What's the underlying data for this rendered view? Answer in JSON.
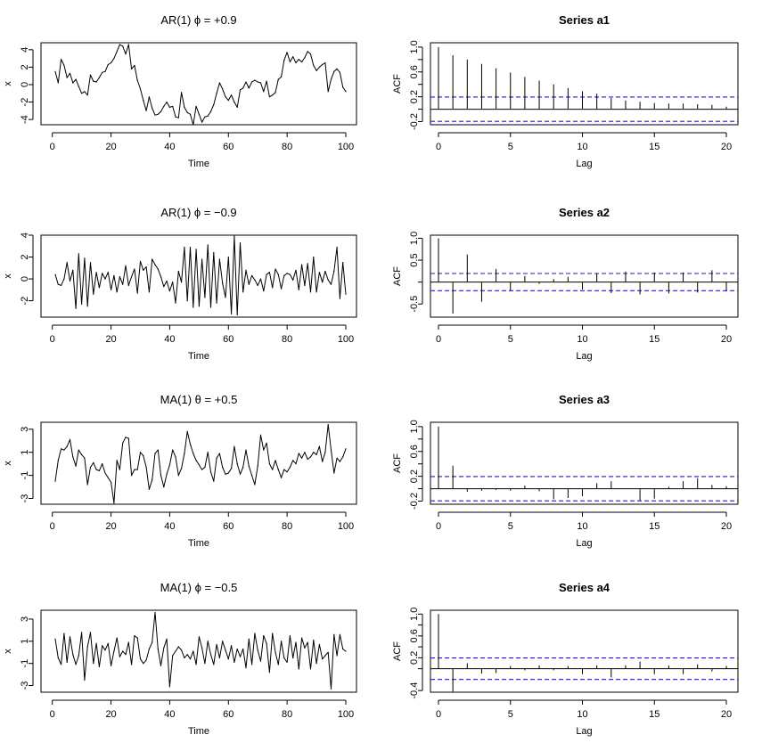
{
  "chart_data": [
    {
      "type": "line",
      "title": "AR(1)  ϕ = +0.9",
      "xlabel": "Time",
      "ylabel": "x",
      "xlim": [
        1,
        100
      ],
      "ylim": [
        -4.6,
        4.8
      ],
      "xticks": [
        0,
        20,
        40,
        60,
        80,
        100
      ],
      "yticks": [
        -4,
        -2,
        0,
        2,
        4
      ],
      "x": [
        1,
        2,
        3,
        4,
        5,
        6,
        7,
        8,
        9,
        10,
        11,
        12,
        13,
        14,
        15,
        16,
        17,
        18,
        19,
        20,
        21,
        22,
        23,
        24,
        25,
        26,
        27,
        28,
        29,
        30,
        31,
        32,
        33,
        34,
        35,
        36,
        37,
        38,
        39,
        40,
        41,
        42,
        43,
        44,
        45,
        46,
        47,
        48,
        49,
        50,
        51,
        52,
        53,
        54,
        55,
        56,
        57,
        58,
        59,
        60,
        61,
        62,
        63,
        64,
        65,
        66,
        67,
        68,
        69,
        70,
        71,
        72,
        73,
        74,
        75,
        76,
        77,
        78,
        79,
        80,
        81,
        82,
        83,
        84,
        85,
        86,
        87,
        88,
        89,
        90,
        91,
        92,
        93,
        94,
        95,
        96,
        97,
        98,
        99,
        100
      ],
      "values": [
        1.5,
        0.2,
        2.9,
        2.2,
        0.8,
        1.3,
        0.2,
        0.6,
        -0.2,
        -1.0,
        -0.8,
        -1.2,
        1.1,
        0.4,
        0.3,
        0.8,
        1.4,
        1.5,
        2.3,
        2.5,
        3.0,
        3.8,
        4.6,
        4.4,
        3.5,
        4.6,
        1.8,
        2.2,
        0.5,
        -0.5,
        -1.8,
        -3.0,
        -1.4,
        -2.7,
        -3.5,
        -3.4,
        -3.1,
        -2.5,
        -2.0,
        -2.6,
        -2.5,
        -3.7,
        -3.8,
        -0.9,
        -2.6,
        -3.2,
        -3.4,
        -4.6,
        -2.5,
        -3.4,
        -4.3,
        -3.7,
        -3.6,
        -3.1,
        -2.3,
        -1.0,
        0.2,
        -0.5,
        -1.4,
        -1.8,
        -1.2,
        -2.0,
        -2.6,
        -0.6,
        -0.4,
        0.3,
        -0.4,
        0.3,
        0.5,
        0.3,
        0.2,
        -0.8,
        0.4,
        -1.4,
        -1.2,
        -0.9,
        0.6,
        0.9,
        2.8,
        3.7,
        2.6,
        3.2,
        2.5,
        2.9,
        2.6,
        3.1,
        3.8,
        3.5,
        2.2,
        1.6,
        2.0,
        2.3,
        2.5,
        -0.8,
        0.6,
        1.5,
        1.8,
        1.4,
        -0.3,
        -0.8
      ]
    },
    {
      "type": "bar",
      "title": "Series  a1",
      "xlabel": "Lag",
      "ylabel": "ACF",
      "xlim": [
        -0.8,
        20.8
      ],
      "ylim": [
        -0.25,
        1.07
      ],
      "xticks": [
        0,
        5,
        10,
        15,
        20
      ],
      "yticks": [
        -0.2,
        0.2,
        0.6,
        1.0
      ],
      "ytick_labels": [
        "-0.2",
        "0.2",
        "0.6",
        "1.0"
      ],
      "extra_yticks": [
        0.0,
        0.4,
        0.8
      ],
      "confidence_bounds": [
        0.196,
        -0.196
      ],
      "x": [
        0,
        1,
        2,
        3,
        4,
        5,
        6,
        7,
        8,
        9,
        10,
        11,
        12,
        13,
        14,
        15,
        16,
        17,
        18,
        19,
        20
      ],
      "values": [
        1.0,
        0.87,
        0.8,
        0.73,
        0.66,
        0.59,
        0.52,
        0.46,
        0.4,
        0.34,
        0.29,
        0.25,
        0.18,
        0.14,
        0.12,
        0.1,
        0.09,
        0.09,
        0.08,
        0.07,
        0.04
      ]
    },
    {
      "type": "line",
      "title": "AR(1)  ϕ = −0.9",
      "xlabel": "Time",
      "ylabel": "x",
      "xlim": [
        1,
        100
      ],
      "ylim": [
        -3.5,
        4.0
      ],
      "xticks": [
        0,
        20,
        40,
        60,
        80,
        100
      ],
      "yticks": [
        -2,
        0,
        2,
        4
      ],
      "x": [
        1,
        2,
        3,
        4,
        5,
        6,
        7,
        8,
        9,
        10,
        11,
        12,
        13,
        14,
        15,
        16,
        17,
        18,
        19,
        20,
        21,
        22,
        23,
        24,
        25,
        26,
        27,
        28,
        29,
        30,
        31,
        32,
        33,
        34,
        35,
        36,
        37,
        38,
        39,
        40,
        41,
        42,
        43,
        44,
        45,
        46,
        47,
        48,
        49,
        50,
        51,
        52,
        53,
        54,
        55,
        56,
        57,
        58,
        59,
        60,
        61,
        62,
        63,
        64,
        65,
        66,
        67,
        68,
        69,
        70,
        71,
        72,
        73,
        74,
        75,
        76,
        77,
        78,
        79,
        80,
        81,
        82,
        83,
        84,
        85,
        86,
        87,
        88,
        89,
        90,
        91,
        92,
        93,
        94,
        95,
        96,
        97,
        98,
        99,
        100
      ],
      "values": [
        0.4,
        -0.5,
        -0.6,
        0.0,
        1.5,
        -0.2,
        0.8,
        -2.7,
        2.3,
        -2.3,
        1.9,
        -2.5,
        1.5,
        -1.4,
        0.6,
        -0.8,
        0.5,
        0.0,
        0.6,
        -1.0,
        0.3,
        -1.2,
        0.2,
        -0.5,
        1.2,
        -0.6,
        0.2,
        0.9,
        -1.3,
        1.6,
        0.8,
        1.1,
        -1.2,
        1.8,
        1.3,
        0.9,
        0.2,
        -0.7,
        -0.2,
        -1.1,
        -0.3,
        -2.2,
        0.7,
        -0.3,
        2.9,
        -2.0,
        2.9,
        -2.6,
        2.7,
        -2.5,
        1.8,
        -1.7,
        3.1,
        -2.6,
        2.4,
        -2.2,
        1.8,
        -0.4,
        -1.7,
        2.0,
        -3.2,
        3.9,
        -3.3,
        3.3,
        -1.2,
        0.8,
        -0.5,
        0.3,
        -0.1,
        -0.6,
        0.0,
        -1.1,
        0.4,
        0.6,
        -0.8,
        0.9,
        0.4,
        -0.9,
        0.3,
        0.5,
        0.4,
        -0.1,
        0.8,
        -1.0,
        1.3,
        -0.6,
        1.4,
        -1.2,
        2.0,
        -1.2,
        0.6,
        -0.3,
        0.7,
        -0.1,
        -0.5,
        0.7,
        2.9,
        -1.8,
        1.5,
        -1.4
      ]
    },
    {
      "type": "bar",
      "title": "Series  a2",
      "xlabel": "Lag",
      "ylabel": "ACF",
      "xlim": [
        -0.8,
        20.8
      ],
      "ylim": [
        -0.8,
        1.07
      ],
      "xticks": [
        0,
        5,
        10,
        15,
        20
      ],
      "yticks": [
        -0.5,
        0.5,
        1.0
      ],
      "ytick_labels": [
        "-0.5",
        "0.5",
        "1.0"
      ],
      "extra_yticks": [
        0.0
      ],
      "confidence_bounds": [
        0.196,
        -0.196
      ],
      "x": [
        0,
        1,
        2,
        3,
        4,
        5,
        6,
        7,
        8,
        9,
        10,
        11,
        12,
        13,
        14,
        15,
        16,
        17,
        18,
        19,
        20
      ],
      "values": [
        1.0,
        -0.72,
        0.63,
        -0.45,
        0.3,
        -0.2,
        0.14,
        -0.04,
        0.07,
        0.12,
        -0.17,
        0.2,
        -0.25,
        0.24,
        -0.28,
        0.22,
        -0.26,
        0.22,
        -0.24,
        0.27,
        -0.2
      ]
    },
    {
      "type": "line",
      "title": "MA(1)  θ = +0.5",
      "xlabel": "Time",
      "ylabel": "x",
      "xlim": [
        1,
        100
      ],
      "ylim": [
        -3.5,
        3.6
      ],
      "xticks": [
        0,
        20,
        40,
        60,
        80,
        100
      ],
      "yticks": [
        -3,
        -1,
        1,
        3
      ],
      "x": [
        1,
        2,
        3,
        4,
        5,
        6,
        7,
        8,
        9,
        10,
        11,
        12,
        13,
        14,
        15,
        16,
        17,
        18,
        19,
        20,
        21,
        22,
        23,
        24,
        25,
        26,
        27,
        28,
        29,
        30,
        31,
        32,
        33,
        34,
        35,
        36,
        37,
        38,
        39,
        40,
        41,
        42,
        43,
        44,
        45,
        46,
        47,
        48,
        49,
        50,
        51,
        52,
        53,
        54,
        55,
        56,
        57,
        58,
        59,
        60,
        61,
        62,
        63,
        64,
        65,
        66,
        67,
        68,
        69,
        70,
        71,
        72,
        73,
        74,
        75,
        76,
        77,
        78,
        79,
        80,
        81,
        82,
        83,
        84,
        85,
        86,
        87,
        88,
        89,
        90,
        91,
        92,
        93,
        94,
        95,
        96,
        97,
        98,
        99,
        100
      ],
      "values": [
        -1.5,
        0.3,
        1.3,
        1.2,
        1.5,
        2.1,
        0.6,
        -0.2,
        1.2,
        0.8,
        0.5,
        -1.8,
        -0.3,
        0.1,
        -0.5,
        -0.6,
        0.0,
        -0.8,
        -1.2,
        -1.6,
        -3.4,
        0.3,
        -0.5,
        1.8,
        2.3,
        2.2,
        -1.0,
        -0.5,
        -0.5,
        1.0,
        0.7,
        -0.3,
        -2.2,
        -1.4,
        0.9,
        1.2,
        -1.0,
        -2.0,
        -0.9,
        -0.1,
        1.2,
        0.6,
        -1.0,
        -0.4,
        0.9,
        2.8,
        1.7,
        0.9,
        0.3,
        -0.1,
        -0.5,
        -0.3,
        1.0,
        -0.7,
        -1.5,
        0.5,
        0.9,
        -0.3,
        -0.9,
        -0.8,
        -0.4,
        1.5,
        0.0,
        -0.9,
        -0.3,
        1.2,
        -0.2,
        -1.0,
        -1.8,
        -0.2,
        2.5,
        1.2,
        1.8,
        0.0,
        -0.5,
        0.3,
        -0.5,
        -1.2,
        -0.5,
        -0.7,
        -0.3,
        0.3,
        0.0,
        0.9,
        0.5,
        1.0,
        0.4,
        0.6,
        1.0,
        0.8,
        1.5,
        0.2,
        1.0,
        3.4,
        1.2,
        -0.8,
        0.5,
        0.2,
        0.6,
        1.3
      ]
    },
    {
      "type": "bar",
      "title": "Series  a3",
      "xlabel": "Lag",
      "ylabel": "ACF",
      "xlim": [
        -0.8,
        20.8
      ],
      "ylim": [
        -0.25,
        1.07
      ],
      "xticks": [
        0,
        5,
        10,
        15,
        20
      ],
      "yticks": [
        -0.2,
        0.2,
        0.6,
        1.0
      ],
      "ytick_labels": [
        "-0.2",
        "0.2",
        "0.6",
        "1.0"
      ],
      "extra_yticks": [
        0.0,
        0.4,
        0.8
      ],
      "confidence_bounds": [
        0.196,
        -0.196
      ],
      "x": [
        0,
        1,
        2,
        3,
        4,
        5,
        6,
        7,
        8,
        9,
        10,
        11,
        12,
        13,
        14,
        15,
        16,
        17,
        18,
        19,
        20
      ],
      "values": [
        1.0,
        0.37,
        -0.05,
        -0.03,
        -0.02,
        -0.03,
        0.05,
        -0.04,
        -0.17,
        -0.15,
        -0.12,
        0.09,
        0.12,
        0.0,
        -0.19,
        -0.16,
        0.03,
        0.12,
        0.17,
        0.06,
        0.04
      ]
    },
    {
      "type": "line",
      "title": "MA(1)  ϕ = −0.5",
      "xlabel": "Time",
      "ylabel": "x",
      "xlim": [
        1,
        100
      ],
      "ylim": [
        -3.6,
        3.8
      ],
      "xticks": [
        0,
        20,
        40,
        60,
        80,
        100
      ],
      "yticks": [
        -3,
        -1,
        1,
        3
      ],
      "x": [
        1,
        2,
        3,
        4,
        5,
        6,
        7,
        8,
        9,
        10,
        11,
        12,
        13,
        14,
        15,
        16,
        17,
        18,
        19,
        20,
        21,
        22,
        23,
        24,
        25,
        26,
        27,
        28,
        29,
        30,
        31,
        32,
        33,
        34,
        35,
        36,
        37,
        38,
        39,
        40,
        41,
        42,
        43,
        44,
        45,
        46,
        47,
        48,
        49,
        50,
        51,
        52,
        53,
        54,
        55,
        56,
        57,
        58,
        59,
        60,
        61,
        62,
        63,
        64,
        65,
        66,
        67,
        68,
        69,
        70,
        71,
        72,
        73,
        74,
        75,
        76,
        77,
        78,
        79,
        80,
        81,
        82,
        83,
        84,
        85,
        86,
        87,
        88,
        89,
        90,
        91,
        92,
        93,
        94,
        95,
        96,
        97,
        98,
        99,
        100
      ],
      "values": [
        1.2,
        -0.5,
        -1.1,
        1.7,
        -0.9,
        1.4,
        -0.2,
        -1.1,
        -0.3,
        1.8,
        -2.5,
        0.5,
        1.8,
        -1.0,
        0.8,
        -1.3,
        0.6,
        0.2,
        0.8,
        -1.2,
        0.1,
        1.3,
        -0.4,
        0.1,
        -0.2,
        0.9,
        -1.1,
        1.5,
        1.3,
        -0.6,
        -1.0,
        -0.7,
        0.3,
        0.9,
        3.6,
        0.3,
        -1.2,
        0.4,
        1.2,
        -3.1,
        -0.3,
        0.1,
        0.5,
        0.2,
        -0.5,
        -0.2,
        -0.6,
        0.1,
        -1.1,
        1.4,
        0.4,
        -1.0,
        1.0,
        -0.2,
        -1.1,
        0.7,
        -0.5,
        1.0,
        0.2,
        -0.6,
        0.6,
        -0.9,
        0.3,
        -0.4,
        0.3,
        -1.4,
        1.2,
        -1.1,
        1.7,
        0.2,
        -0.8,
        1.5,
        0.8,
        -1.8,
        1.7,
        0.0,
        -1.1,
        1.0,
        -0.5,
        -0.9,
        1.5,
        -0.5,
        0.9,
        -1.5,
        1.3,
        0.4,
        0.9,
        -1.5,
        1.1,
        -1.0,
        0.7,
        -0.6,
        -0.3,
        0.0,
        -3.3,
        1.6,
        -0.3,
        1.6,
        0.3,
        0.1
      ]
    },
    {
      "type": "bar",
      "title": "Series  a4",
      "xlabel": "Lag",
      "ylabel": "ACF",
      "xlim": [
        -0.8,
        20.8
      ],
      "ylim": [
        -0.43,
        1.07
      ],
      "xticks": [
        0,
        5,
        10,
        15,
        20
      ],
      "yticks": [
        -0.4,
        0.2,
        0.6,
        1.0
      ],
      "ytick_labels": [
        "-0.4",
        "0.2",
        "0.6",
        "1.0"
      ],
      "extra_yticks": [
        0.0,
        0.4,
        0.8
      ],
      "confidence_bounds": [
        0.196,
        -0.196
      ],
      "x": [
        0,
        1,
        2,
        3,
        4,
        5,
        6,
        7,
        8,
        9,
        10,
        11,
        12,
        13,
        14,
        15,
        16,
        17,
        18,
        19,
        20
      ],
      "values": [
        1.0,
        -0.42,
        0.1,
        -0.09,
        -0.08,
        0.05,
        -0.03,
        0.06,
        -0.03,
        0.05,
        -0.1,
        0.06,
        -0.16,
        0.06,
        0.13,
        -0.1,
        0.06,
        -0.1,
        0.08,
        -0.05,
        0.05
      ]
    }
  ]
}
